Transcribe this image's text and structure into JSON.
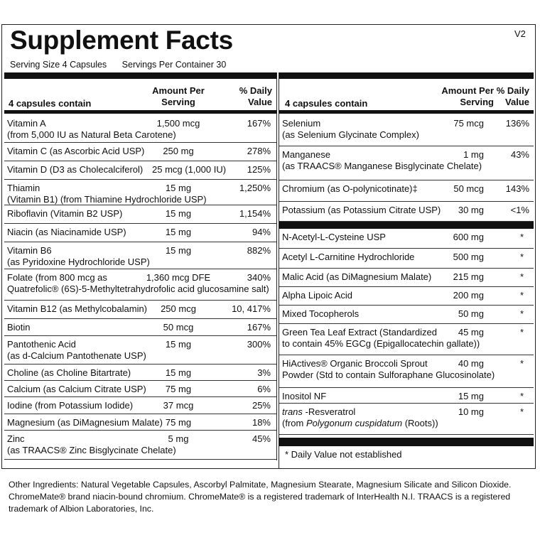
{
  "title": "Supplement Facts",
  "version": "V2",
  "serving_size": "Serving Size  4 Capsules",
  "servings_per_container": "Servings Per Container 30",
  "headers": {
    "contain": "4 capsules contain",
    "amount": [
      "Amount Per",
      "Serving"
    ],
    "dv": [
      "% Daily",
      "Value"
    ]
  },
  "left_rows": [
    {
      "name": [
        "Vitamin A",
        "(from 5,000 IU as Natural Beta Carotene)"
      ],
      "amount": "1,500 mcg",
      "dv": "167%"
    },
    {
      "name": [
        "Vitamin C (as Ascorbic Acid USP)"
      ],
      "amount": "250 mg",
      "dv": "278%"
    },
    {
      "name": [
        "Vitamin D (D3 as Cholecalciferol)"
      ],
      "amount": "25 mcg (1,000 IU)",
      "dv": "125%"
    },
    {
      "name": [
        "Thiamin",
        "(Vitamin B1) (from Thiamine Hydrochloride USP)"
      ],
      "amount": "15 mg",
      "dv": "1,250%"
    },
    {
      "name": [
        "Riboflavin (Vitamin B2 USP)"
      ],
      "amount": "15 mg",
      "dv": "1,154%"
    },
    {
      "name": [
        "Niacin (as Niacinamide USP)"
      ],
      "amount": "15 mg",
      "dv": "94%"
    },
    {
      "name": [
        "Vitamin B6",
        "(as Pyridoxine Hydrochloride USP)"
      ],
      "amount": "15 mg",
      "dv": "882%"
    },
    {
      "name": [
        "Folate (from 800 mcg as",
        "Quatrefolic® (6S)-5-Methyltetrahydrofolic acid glucosamine salt)"
      ],
      "amount": "1,360 mcg DFE",
      "dv": "340%"
    },
    {
      "name": [
        "Vitamin B12 (as Methylcobalamin)"
      ],
      "amount": "250 mcg",
      "dv": "10, 417%"
    },
    {
      "name": [
        "Biotin"
      ],
      "amount": "50 mcg",
      "dv": "167%"
    },
    {
      "name": [
        "Pantothenic Acid",
        "(as d-Calcium Pantothenate USP)"
      ],
      "amount": "15 mg",
      "dv": "300%"
    },
    {
      "name": [
        "Choline (as Choline Bitartrate)"
      ],
      "amount": "15 mg",
      "dv": "3%"
    },
    {
      "name": [
        "Calcium (as Calcium Citrate USP)"
      ],
      "amount": "75 mg",
      "dv": "6%"
    },
    {
      "name": [
        "Iodine (from Potassium Iodide)"
      ],
      "amount": "37 mcg",
      "dv": "25%"
    },
    {
      "name": [
        "Magnesium (as DiMagnesium Malate)"
      ],
      "amount": "75 mg",
      "dv": "18%"
    },
    {
      "name": [
        "Zinc",
        "(as TRAACS® Zinc Bisglycinate Chelate)"
      ],
      "amount": "5 mg",
      "dv": "45%"
    }
  ],
  "right_rows": [
    {
      "name": [
        "Selenium",
        "(as Selenium Glycinate Complex)"
      ],
      "amount": "75 mcg",
      "dv": "136%"
    },
    {
      "name": [
        "Manganese",
        "(as TRAACS® Manganese Bisglycinate Chelate)"
      ],
      "amount": "1 mg",
      "dv": "43%"
    },
    {
      "name": [
        "Chromium (as O-polynicotinate)‡"
      ],
      "amount": "50 mcg",
      "dv": "143%"
    },
    {
      "name": [
        "Potassium (as Potassium Citrate USP)"
      ],
      "amount": "30 mg",
      "dv": "<1%"
    }
  ],
  "right_rows_2": [
    {
      "name": [
        "N-Acetyl-L-Cysteine USP"
      ],
      "amount": "600 mg",
      "dv": "*"
    },
    {
      "name": [
        "Acetyl L-Carnitine Hydrochloride"
      ],
      "amount": "500 mg",
      "dv": "*"
    },
    {
      "name": [
        "Malic Acid (as DiMagnesium Malate)"
      ],
      "amount": "215 mg",
      "dv": "*"
    },
    {
      "name": [
        "Alpha Lipoic Acid"
      ],
      "amount": "200 mg",
      "dv": "*"
    },
    {
      "name": [
        "Mixed Tocopherols"
      ],
      "amount": "50 mg",
      "dv": "*"
    },
    {
      "name": [
        "Green Tea Leaf Extract  (Standardized",
        "to contain 45% EGCg (Epigallocatechin gallate))"
      ],
      "amount": "45 mg",
      "dv": "*"
    },
    {
      "name": [
        "HiActives® Organic Broccoli Sprout",
        "Powder  (Std to contain Sulforaphane Glucosinolate)"
      ],
      "amount": "40 mg",
      "dv": "*"
    },
    {
      "name": [
        "Inositol NF"
      ],
      "amount": "15 mg",
      "dv": "*"
    },
    {
      "name": [
        [
          {
            "text": "trans",
            "italic": true
          },
          {
            "text": " -Resveratrol",
            "italic": false
          }
        ],
        [
          {
            "text": "(from ",
            "italic": false
          },
          {
            "text": "Polygonum cuspidatum",
            "italic": true
          },
          {
            "text": " (Roots))",
            "italic": false
          }
        ]
      ],
      "amount": "10 mg",
      "dv": "*"
    }
  ],
  "footnote": "*  Daily Value not established",
  "other_ingredients": "Other Ingredients: Natural Vegetable Capsules, Ascorbyl Palmitate, Magnesium Stearate, Magnesium Silicate and Silicon Dioxide. ChromeMate® brand niacin-bound chromium. ChromeMate® is a registered trademark of InterHealth N.I. TRAACS is a registered trademark of Albion Laboratories, Inc."
}
